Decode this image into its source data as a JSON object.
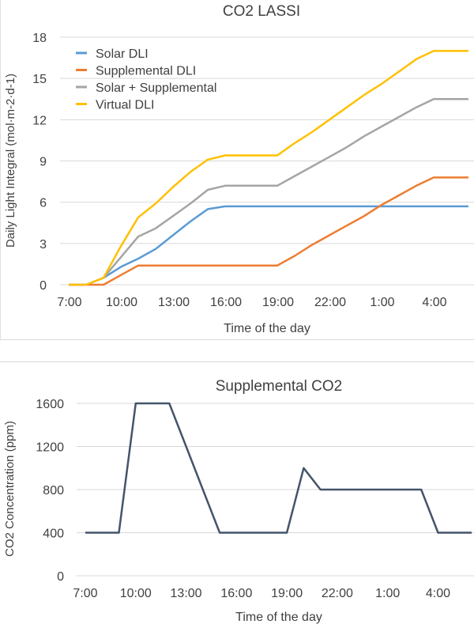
{
  "chart_data": [
    {
      "type": "line",
      "title": "CO2 LASSI",
      "xlabel": "Time of the day",
      "ylabel": "Daily Light Integral (mol·m-2·d-1)",
      "ylim": [
        0,
        18
      ],
      "yticks": [
        0,
        3,
        6,
        9,
        12,
        15,
        18
      ],
      "grid": true,
      "legend": "top-left",
      "x": [
        "7:00",
        "8:00",
        "9:00",
        "10:00",
        "11:00",
        "12:00",
        "13:00",
        "14:00",
        "15:00",
        "16:00",
        "17:00",
        "18:00",
        "19:00",
        "20:00",
        "21:00",
        "22:00",
        "23:00",
        "0:00",
        "1:00",
        "2:00",
        "3:00",
        "4:00",
        "5:00",
        "6:00"
      ],
      "xtick_labels": [
        "7:00",
        "10:00",
        "13:00",
        "16:00",
        "19:00",
        "22:00",
        "1:00",
        "4:00"
      ],
      "series": [
        {
          "name": "Solar DLI",
          "color": "#5B9BD5",
          "values": [
            0,
            0,
            0.5,
            1.3,
            1.9,
            2.6,
            3.6,
            4.6,
            5.5,
            5.7,
            5.7,
            5.7,
            5.7,
            5.7,
            5.7,
            5.7,
            5.7,
            5.7,
            5.7,
            5.7,
            5.7,
            5.7,
            5.7,
            5.7
          ]
        },
        {
          "name": "Supplemental DLI",
          "color": "#ED7D31",
          "values": [
            0,
            0,
            0,
            0.7,
            1.4,
            1.4,
            1.4,
            1.4,
            1.4,
            1.4,
            1.4,
            1.4,
            1.4,
            2.1,
            2.9,
            3.6,
            4.3,
            5.0,
            5.8,
            6.5,
            7.2,
            7.8,
            7.8,
            7.8
          ]
        },
        {
          "name": "Solar + Supplemental",
          "color": "#A5A5A5",
          "values": [
            0,
            0,
            0.5,
            2.0,
            3.5,
            4.1,
            5.0,
            5.9,
            6.9,
            7.2,
            7.2,
            7.2,
            7.2,
            7.9,
            8.6,
            9.3,
            10.0,
            10.8,
            11.5,
            12.2,
            12.9,
            13.5,
            13.5,
            13.5
          ]
        },
        {
          "name": "Virtual DLI",
          "color": "#FFC000",
          "values": [
            0,
            0,
            0.5,
            2.8,
            4.9,
            5.9,
            7.1,
            8.2,
            9.1,
            9.4,
            9.4,
            9.4,
            9.4,
            10.3,
            11.1,
            12.0,
            12.9,
            13.8,
            14.6,
            15.5,
            16.4,
            17.0,
            17.0,
            17.0
          ]
        }
      ]
    },
    {
      "type": "line",
      "title": "Supplemental CO2",
      "xlabel": "Time of the day",
      "ylabel": "CO2 Concentration (ppm)",
      "ylim": [
        0,
        1600
      ],
      "yticks": [
        0,
        400,
        800,
        1200,
        1600
      ],
      "grid": true,
      "x": [
        "7:00",
        "8:00",
        "9:00",
        "10:00",
        "11:00",
        "12:00",
        "13:00",
        "14:00",
        "15:00",
        "16:00",
        "17:00",
        "18:00",
        "19:00",
        "20:00",
        "21:00",
        "22:00",
        "23:00",
        "0:00",
        "1:00",
        "2:00",
        "3:00",
        "4:00",
        "5:00",
        "6:00"
      ],
      "xtick_labels": [
        "7:00",
        "10:00",
        "13:00",
        "16:00",
        "19:00",
        "22:00",
        "1:00",
        "4:00"
      ],
      "series": [
        {
          "name": "Supplemental CO2",
          "color": "#44546A",
          "values": [
            400,
            400,
            400,
            1600,
            1600,
            1600,
            1200,
            800,
            400,
            400,
            400,
            400,
            400,
            1000,
            800,
            800,
            800,
            800,
            800,
            800,
            800,
            400,
            400,
            400
          ]
        }
      ]
    }
  ]
}
